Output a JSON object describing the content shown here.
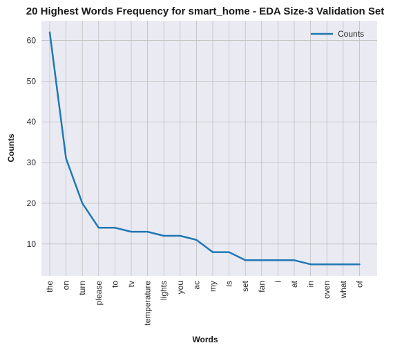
{
  "chart_data": {
    "type": "line",
    "title": "20 Highest Words Frequency for smart_home - EDA Size-3 Validation Set",
    "xlabel": "Words",
    "ylabel": "Counts",
    "categories": [
      "the",
      "on",
      "turn",
      "please",
      "to",
      "tv",
      "temperature",
      "lights",
      "you",
      "ac",
      "my",
      "is",
      "set",
      "fan",
      "i",
      "at",
      "in",
      "oven",
      "what",
      "of"
    ],
    "series": [
      {
        "name": "Counts",
        "values": [
          62,
          31,
          20,
          14,
          14,
          13,
          13,
          12,
          12,
          11,
          8,
          8,
          6,
          6,
          6,
          6,
          5,
          5,
          5,
          5
        ],
        "color": "#1f77b4"
      }
    ],
    "ylim": [
      2.15,
      64.85
    ],
    "yticks": [
      10,
      20,
      30,
      40,
      50,
      60
    ],
    "grid": true,
    "legend": "top-right",
    "background": "#eaeaf2",
    "grid_color": "#c0c0c0"
  }
}
